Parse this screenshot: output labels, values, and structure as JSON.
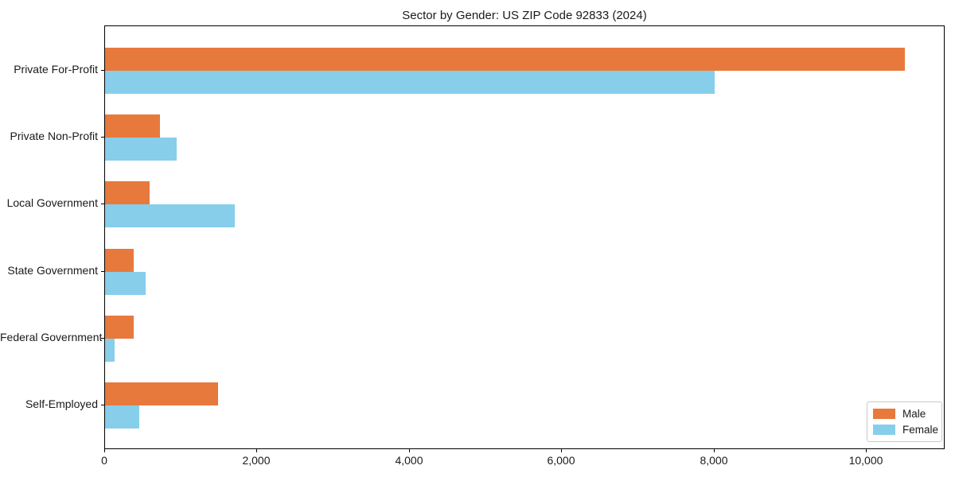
{
  "title": "Sector by Gender: US ZIP Code 92833 (2024)",
  "chart_data": {
    "type": "bar",
    "orientation": "horizontal",
    "title": "Sector by Gender: US ZIP Code 92833 (2024)",
    "categories": [
      "Private For-Profit",
      "Private Non-Profit",
      "Local Government",
      "State Government",
      "Federal Government",
      "Self-Employed"
    ],
    "series": [
      {
        "name": "Male",
        "color": "#E8793D",
        "values": [
          10500,
          720,
          590,
          380,
          380,
          1480
        ]
      },
      {
        "name": "Female",
        "color": "#87CEEB",
        "values": [
          8000,
          940,
          1700,
          530,
          130,
          450
        ]
      }
    ],
    "xlabel": "",
    "ylabel": "",
    "xlim": [
      0,
      11030
    ],
    "xticks": [
      0,
      2000,
      4000,
      6000,
      8000,
      10000
    ],
    "xtick_labels": [
      "0",
      "2,000",
      "4,000",
      "6,000",
      "8,000",
      "10,000"
    ],
    "grid": false,
    "legend": {
      "position": "lower right",
      "entries": [
        "Male",
        "Female"
      ]
    }
  },
  "colors": {
    "male": "#E8793D",
    "female": "#87CEEB",
    "axis": "#000000",
    "text": "#1a1a1a",
    "background": "#ffffff",
    "legend_border": "#c9c9c9"
  }
}
